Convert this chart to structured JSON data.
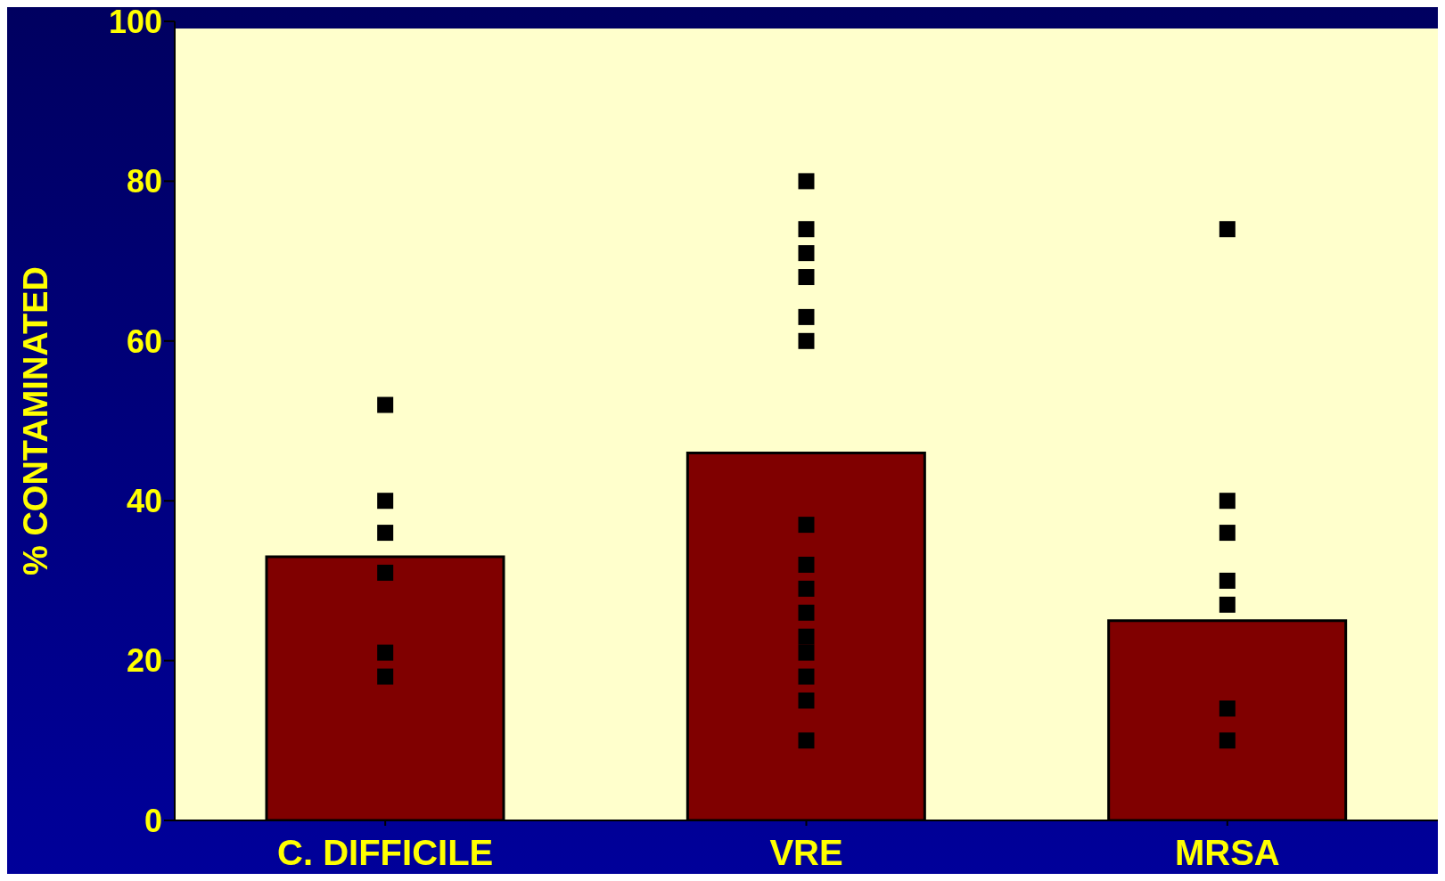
{
  "chart_data": {
    "type": "bar",
    "ylabel": "% CONTAMINATED",
    "categories": [
      "C. DIFFICILE",
      "VRE",
      "MRSA"
    ],
    "values": [
      33,
      46,
      25
    ],
    "color": "#800000",
    "ylim": [
      0,
      100
    ],
    "yticks": [
      0,
      20,
      40,
      60,
      80,
      100
    ],
    "series": [
      {
        "type": "scatter",
        "color": "#000000",
        "marker": "square",
        "x": [
          "C. DIFFICILE",
          "C. DIFFICILE",
          "C. DIFFICILE",
          "C. DIFFICILE",
          "C. DIFFICILE",
          "C. DIFFICILE",
          "VRE",
          "VRE",
          "VRE",
          "VRE",
          "VRE",
          "VRE",
          "VRE",
          "VRE",
          "VRE",
          "VRE",
          "VRE",
          "VRE",
          "VRE",
          "VRE",
          "VRE",
          "MRSA",
          "MRSA",
          "MRSA",
          "MRSA",
          "MRSA",
          "MRSA",
          "MRSA"
        ],
        "values": [
          52,
          40,
          36,
          31,
          21,
          18,
          80,
          74,
          71,
          68,
          63,
          60,
          37,
          32,
          29,
          26,
          23,
          21,
          18,
          15,
          10,
          74,
          40,
          36,
          30,
          27,
          14,
          10
        ]
      }
    ]
  }
}
